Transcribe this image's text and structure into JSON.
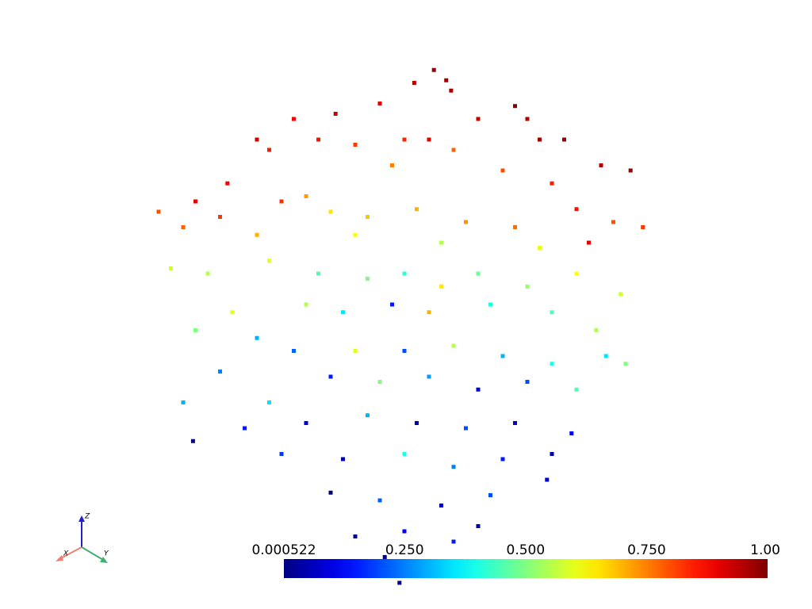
{
  "chart_data": {
    "type": "scatter",
    "colormap": "jet",
    "xlim": [
      -1,
      1
    ],
    "ylim": [
      -1,
      1
    ],
    "clim": [
      0.000522,
      1.0
    ],
    "cticks": [
      0.000522,
      {
        "value": 0.25,
        "label": "0.250"
      },
      {
        "value": 0.5,
        "label": "0.500"
      },
      {
        "value": 0.75,
        "label": "0.750"
      },
      {
        "value": 1.0,
        "label": "1.00"
      }
    ],
    "x": [
      0.12,
      0.17,
      0.04,
      0.19,
      -0.28,
      -0.1,
      0.45,
      0.5,
      0.3,
      -0.45,
      -0.6,
      -0.55,
      0.55,
      0.65,
      0.8,
      0.92,
      -0.35,
      -0.2,
      0.0,
      0.1,
      0.2,
      -0.05,
      0.4,
      0.6,
      -0.72,
      -0.85,
      -1.0,
      -0.9,
      -0.75,
      -0.5,
      -0.4,
      -0.3,
      -0.15,
      0.05,
      0.25,
      0.45,
      0.7,
      0.85,
      0.97,
      0.75,
      -0.6,
      -0.2,
      0.15,
      0.55,
      -0.95,
      -0.8,
      -0.55,
      -0.35,
      -0.15,
      0.0,
      0.15,
      0.3,
      0.5,
      0.7,
      0.88,
      -0.7,
      -0.4,
      -0.25,
      -0.05,
      0.1,
      0.35,
      0.6,
      0.78,
      -0.85,
      -0.6,
      -0.45,
      -0.2,
      0.0,
      0.2,
      0.4,
      0.6,
      0.82,
      -0.75,
      -0.3,
      -0.1,
      0.1,
      0.3,
      0.5,
      0.7,
      0.9,
      -0.9,
      -0.55,
      -0.65,
      -0.4,
      -0.15,
      0.05,
      0.25,
      0.45,
      0.68,
      -0.86,
      -0.5,
      -0.25,
      0.0,
      0.2,
      0.4,
      0.6,
      -0.3,
      -0.1,
      0.15,
      0.35,
      0.58,
      -0.2,
      0.0,
      0.3,
      -0.08,
      0.2,
      -0.02
    ],
    "y": [
      0.99,
      0.95,
      0.94,
      0.91,
      0.82,
      0.86,
      0.85,
      0.8,
      0.8,
      0.8,
      0.72,
      0.68,
      0.72,
      0.72,
      0.62,
      0.6,
      0.72,
      0.7,
      0.72,
      0.72,
      0.68,
      0.62,
      0.6,
      0.55,
      0.55,
      0.48,
      0.44,
      0.38,
      0.42,
      0.48,
      0.5,
      0.44,
      0.42,
      0.45,
      0.4,
      0.38,
      0.45,
      0.4,
      0.38,
      0.32,
      0.35,
      0.35,
      0.32,
      0.3,
      0.22,
      0.2,
      0.25,
      0.2,
      0.18,
      0.2,
      0.15,
      0.2,
      0.15,
      0.2,
      0.12,
      0.05,
      0.08,
      0.05,
      0.08,
      0.05,
      0.08,
      0.05,
      -0.02,
      -0.02,
      -0.05,
      -0.1,
      -0.1,
      -0.1,
      -0.08,
      -0.12,
      -0.15,
      -0.12,
      -0.18,
      -0.2,
      -0.22,
      -0.2,
      -0.25,
      -0.22,
      -0.25,
      -0.15,
      -0.3,
      -0.3,
      -0.4,
      -0.38,
      -0.35,
      -0.38,
      -0.4,
      -0.38,
      -0.42,
      -0.45,
      -0.5,
      -0.52,
      -0.5,
      -0.55,
      -0.52,
      -0.5,
      -0.65,
      -0.68,
      -0.7,
      -0.66,
      -0.6,
      -0.82,
      -0.8,
      -0.78,
      -0.9,
      -0.84,
      -1.0
    ],
    "values": [
      0.98,
      0.97,
      0.95,
      0.96,
      0.93,
      0.9,
      0.99,
      0.95,
      0.92,
      0.88,
      0.92,
      0.85,
      0.96,
      0.98,
      0.95,
      0.97,
      0.86,
      0.82,
      0.84,
      0.9,
      0.78,
      0.75,
      0.8,
      0.85,
      0.88,
      0.9,
      0.8,
      0.78,
      0.82,
      0.83,
      0.72,
      0.65,
      0.68,
      0.7,
      0.73,
      0.77,
      0.86,
      0.8,
      0.82,
      0.9,
      0.7,
      0.62,
      0.55,
      0.6,
      0.58,
      0.55,
      0.6,
      0.45,
      0.5,
      0.42,
      0.65,
      0.48,
      0.52,
      0.62,
      0.58,
      0.6,
      0.55,
      0.35,
      0.15,
      0.7,
      0.4,
      0.45,
      0.55,
      0.5,
      0.3,
      0.22,
      0.6,
      0.2,
      0.55,
      0.3,
      0.4,
      0.35,
      0.25,
      0.15,
      0.5,
      0.28,
      0.1,
      0.2,
      0.45,
      0.5,
      0.3,
      0.35,
      0.15,
      0.1,
      0.3,
      0.05,
      0.2,
      0.08,
      0.12,
      0.02,
      0.18,
      0.05,
      0.4,
      0.25,
      0.15,
      0.05,
      0.0,
      0.22,
      0.08,
      0.2,
      0.1,
      0.03,
      0.12,
      0.05,
      0.02,
      0.15,
      0.01
    ],
    "orientation_axes": {
      "z": "Z",
      "x": "X",
      "y": "Y"
    }
  }
}
